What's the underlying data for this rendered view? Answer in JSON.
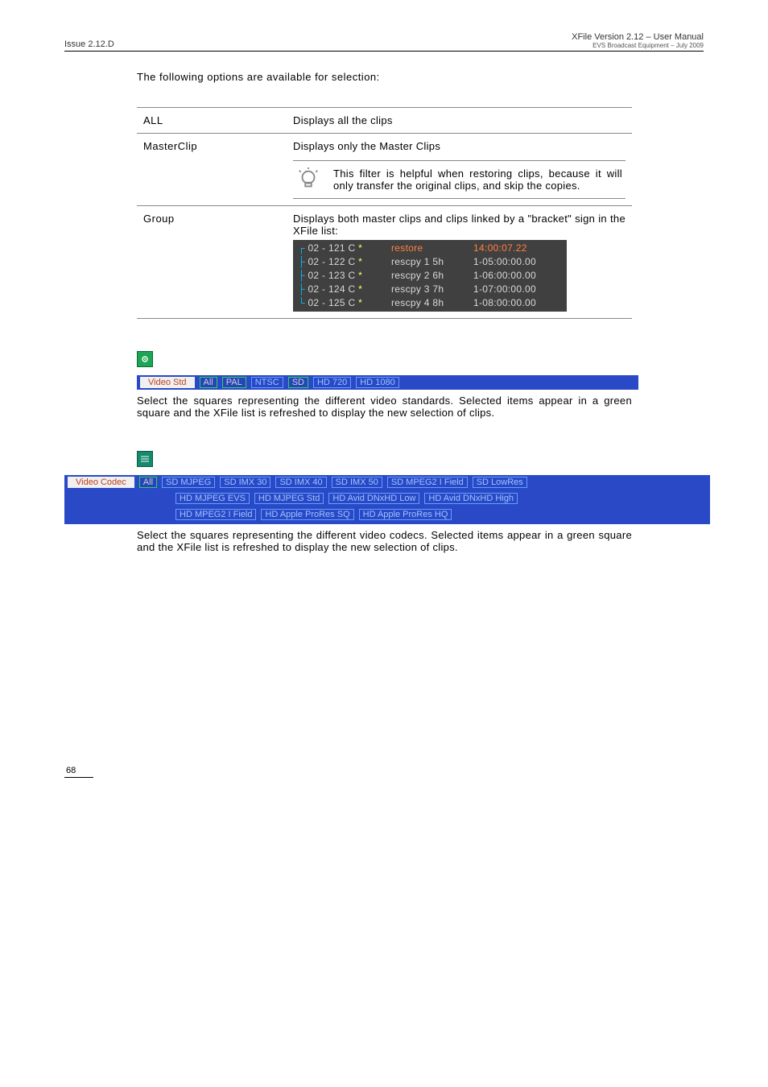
{
  "header": {
    "issue": "Issue 2.12.D",
    "product": "XFile Version 2.12 – User Manual",
    "sub": "EVS Broadcast Equipment – July 2009"
  },
  "intro": "The following options are available for selection:",
  "options": {
    "all": {
      "label": "ALL",
      "text": "Displays all the clips"
    },
    "master": {
      "label": "MasterClip",
      "text": "Displays only the Master Clips",
      "tip": "This filter is helpful when restoring clips, because it will only transfer the original clips, and skip the copies."
    },
    "group": {
      "label": "Group",
      "text": "Displays both master clips and clips linked by a \"bracket\" sign in the XFile list:",
      "rows": [
        {
          "b": "┌",
          "id": "02 - 121 C",
          "name": "restore",
          "tc": "14:00:07.22",
          "hi": true
        },
        {
          "b": "├",
          "id": "02 - 122 C",
          "name": "rescpy 1 5h",
          "tc": "1-05:00:00.00",
          "hi": false
        },
        {
          "b": "├",
          "id": "02 - 123 C",
          "name": "rescpy 2 6h",
          "tc": "1-06:00:00.00",
          "hi": false
        },
        {
          "b": "├",
          "id": "02 - 124 C",
          "name": "rescpy 3 7h",
          "tc": "1-07:00:00.00",
          "hi": false
        },
        {
          "b": "└",
          "id": "02 - 125 C",
          "name": "rescpy 4 8h",
          "tc": "1-08:00:00.00",
          "hi": false
        }
      ]
    }
  },
  "videoStd": {
    "label": "Video Std",
    "items": [
      "All",
      "PAL",
      "NTSC",
      "SD",
      "HD 720",
      "HD 1080"
    ],
    "selected": [
      "All",
      "PAL",
      "SD"
    ],
    "text": "Select the squares representing the different video standards. Selected items appear in a green square and the XFile list is refreshed to display the new selection of clips."
  },
  "videoCodec": {
    "label": "Video Codec",
    "row1": [
      "All",
      "SD MJPEG",
      "SD IMX 30",
      "SD IMX 40",
      "SD IMX 50",
      "SD MPEG2 I Field",
      "SD LowRes"
    ],
    "row2": [
      "HD MJPEG EVS",
      "HD MJPEG Std",
      "HD Avid DNxHD Low",
      "HD Avid DNxHD High"
    ],
    "row3": [
      "HD MPEG2 I Field",
      "HD Apple ProRes SQ",
      "HD Apple ProRes HQ"
    ],
    "selected": [
      "All"
    ],
    "text": "Select the squares representing the different video codecs. Selected items appear in a green square and the XFile list is refreshed to display the new selection of clips."
  },
  "pageNumber": "68"
}
